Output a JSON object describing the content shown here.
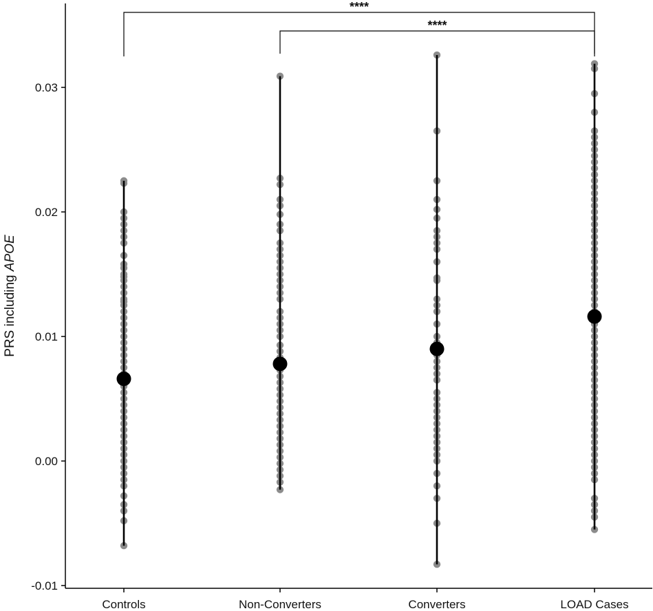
{
  "chart_data": {
    "type": "scatter",
    "subtype": "strip plot with mean and range",
    "title": "",
    "xlabel": "",
    "ylabel": {
      "prefix": "PRS including ",
      "italic": "APOE"
    },
    "ylim": [
      -0.0105,
      0.037
    ],
    "yticks": [
      -0.01,
      0.0,
      0.01,
      0.02,
      0.03
    ],
    "ytick_labels": [
      "-0.01",
      "0.00",
      "0.01",
      "0.02",
      "0.03"
    ],
    "grid": false,
    "legend": "none",
    "colors": {
      "points": "#8c8c8c",
      "mean": "#000000",
      "range_line": "#000000",
      "axis": "#000000"
    },
    "categories": [
      "Controls",
      "Non-Converters",
      "Converters",
      "LOAD Cases"
    ],
    "groups": [
      {
        "name": "Controls",
        "mean": 0.0066,
        "min": -0.0068,
        "max": 0.0225,
        "points": [
          0.0225,
          0.0223,
          0.02,
          0.0195,
          0.019,
          0.0185,
          0.018,
          0.0175,
          0.0165,
          0.0158,
          0.0155,
          0.015,
          0.0148,
          0.0145,
          0.014,
          0.0135,
          0.013,
          0.0128,
          0.0125,
          0.012,
          0.0115,
          0.011,
          0.0105,
          0.01,
          0.0095,
          0.009,
          0.0085,
          0.008,
          0.0075,
          0.007,
          0.0065,
          0.006,
          0.0055,
          0.005,
          0.0045,
          0.004,
          0.0035,
          0.003,
          0.0025,
          0.002,
          0.0015,
          0.001,
          0.0005,
          0.0,
          -0.0005,
          -0.001,
          -0.0015,
          -0.002,
          -0.0028,
          -0.0035,
          -0.004,
          -0.0048,
          -0.0068
        ]
      },
      {
        "name": "Non-Converters",
        "mean": 0.0078,
        "min": -0.0023,
        "max": 0.0309,
        "points": [
          0.0309,
          0.0227,
          0.0222,
          0.021,
          0.0205,
          0.0198,
          0.019,
          0.0185,
          0.0175,
          0.017,
          0.0165,
          0.016,
          0.0155,
          0.015,
          0.0145,
          0.014,
          0.0135,
          0.013,
          0.012,
          0.0115,
          0.011,
          0.0105,
          0.01,
          0.0093,
          0.0088,
          0.0083,
          0.0078,
          0.0073,
          0.0068,
          0.0063,
          0.0058,
          0.0053,
          0.0048,
          0.0043,
          0.0038,
          0.0033,
          0.0028,
          0.0023,
          0.0018,
          0.0013,
          0.0008,
          0.0003,
          -0.0002,
          -0.0007,
          -0.0012,
          -0.0017,
          -0.0023
        ]
      },
      {
        "name": "Converters",
        "mean": 0.009,
        "min": -0.0083,
        "max": 0.0326,
        "points": [
          0.0326,
          0.0265,
          0.0225,
          0.021,
          0.0202,
          0.0195,
          0.0185,
          0.018,
          0.0175,
          0.017,
          0.016,
          0.0147,
          0.0145,
          0.013,
          0.0125,
          0.012,
          0.011,
          0.01,
          0.0095,
          0.009,
          0.0085,
          0.008,
          0.0075,
          0.007,
          0.0065,
          0.0055,
          0.005,
          0.0045,
          0.004,
          0.0035,
          0.003,
          0.0025,
          0.002,
          0.0015,
          0.001,
          0.0005,
          0.0,
          -0.001,
          -0.002,
          -0.003,
          -0.005,
          -0.0083
        ]
      },
      {
        "name": "LOAD Cases",
        "mean": 0.0116,
        "min": -0.0055,
        "max": 0.0319,
        "points": [
          0.0319,
          0.0315,
          0.0295,
          0.028,
          0.0265,
          0.026,
          0.0255,
          0.025,
          0.0245,
          0.024,
          0.0235,
          0.023,
          0.0225,
          0.022,
          0.0215,
          0.021,
          0.0205,
          0.02,
          0.0195,
          0.019,
          0.0185,
          0.018,
          0.0175,
          0.017,
          0.0165,
          0.016,
          0.0155,
          0.015,
          0.0145,
          0.014,
          0.0135,
          0.013,
          0.0125,
          0.012,
          0.0115,
          0.011,
          0.0105,
          0.01,
          0.0095,
          0.009,
          0.0085,
          0.008,
          0.0075,
          0.007,
          0.0065,
          0.006,
          0.0055,
          0.005,
          0.0045,
          0.004,
          0.0035,
          0.003,
          0.0025,
          0.002,
          0.0015,
          0.001,
          0.0005,
          0.0,
          -0.0005,
          -0.001,
          -0.0015,
          -0.003,
          -0.0035,
          -0.004,
          -0.0045,
          -0.0055
        ]
      }
    ],
    "annotations": [
      {
        "label": "****",
        "from": "Controls",
        "to": "LOAD Cases"
      },
      {
        "label": "****",
        "from": "Non-Converters",
        "to": "LOAD Cases"
      }
    ]
  }
}
